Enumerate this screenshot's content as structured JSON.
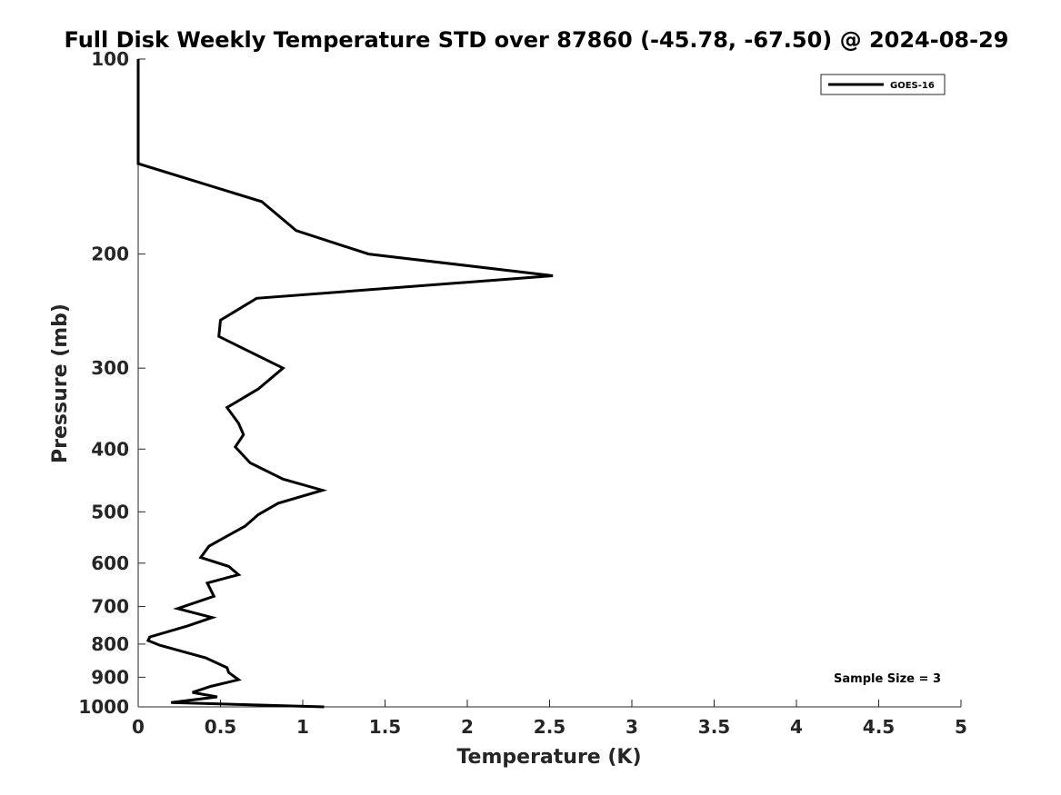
{
  "chart_data": {
    "type": "line",
    "title": "Full Disk Weekly Temperature STD over 87860 (-45.78, -67.50) @ 2024-08-29",
    "xlabel": "Temperature (K)",
    "ylabel": "Pressure (mb)",
    "xlim": [
      0,
      5
    ],
    "ylim": [
      100,
      1000
    ],
    "y_scale": "log",
    "y_reversed": true,
    "grid": false,
    "legend_position": "top-right",
    "x_ticks": [
      0,
      0.5,
      1,
      1.5,
      2,
      2.5,
      3,
      3.5,
      4,
      4.5,
      5
    ],
    "x_tick_labels": [
      "0",
      "0.5",
      "1",
      "1.5",
      "2",
      "2.5",
      "3",
      "3.5",
      "4",
      "4.5",
      "5"
    ],
    "y_ticks": [
      100,
      200,
      300,
      400,
      500,
      600,
      700,
      800,
      900,
      1000
    ],
    "y_tick_labels": [
      "100",
      "200",
      "300",
      "400",
      "500",
      "600",
      "700",
      "800",
      "900",
      "1000"
    ],
    "annotation": "Sample Size = 3",
    "series": [
      {
        "name": "GOES-16",
        "color": "#000000",
        "temperature_k": [
          0,
          0,
          0.75,
          0.96,
          1.4,
          2.52,
          0.72,
          0.5,
          0.49,
          0.88,
          0.73,
          0.54,
          0.61,
          0.64,
          0.59,
          0.68,
          0.88,
          1.12,
          0.85,
          0.73,
          0.65,
          0.54,
          0.43,
          0.38,
          0.55,
          0.61,
          0.42,
          0.46,
          0.24,
          0.45,
          0.3,
          0.07,
          0.06,
          0.13,
          0.41,
          0.54,
          0.55,
          0.61,
          0.44,
          0.33,
          0.48,
          0.2,
          1.13
        ],
        "pressure_mb": [
          100,
          145,
          166,
          184,
          200,
          216,
          234,
          253,
          268,
          300,
          323,
          345,
          365,
          380,
          397,
          420,
          445,
          463,
          485,
          505,
          526,
          545,
          565,
          588,
          607,
          625,
          644,
          675,
          705,
          728,
          750,
          780,
          790,
          803,
          840,
          870,
          885,
          908,
          930,
          950,
          965,
          985,
          1000
        ]
      }
    ]
  }
}
